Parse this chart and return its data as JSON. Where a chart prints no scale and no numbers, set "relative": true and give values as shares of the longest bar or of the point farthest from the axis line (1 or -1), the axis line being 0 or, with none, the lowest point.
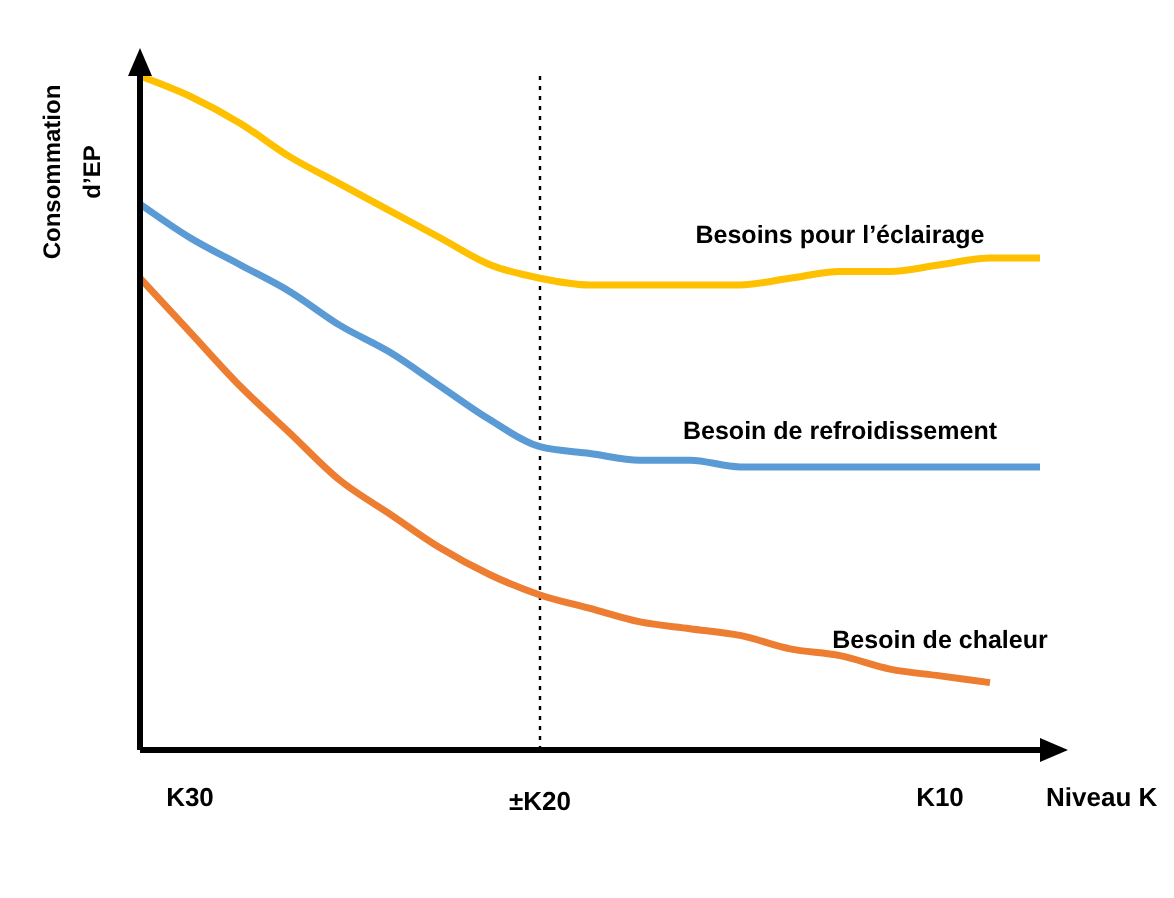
{
  "chart_data": {
    "type": "line",
    "relative": true,
    "ylabel": "Consommation d’EP",
    "xlabel": "Niveau K",
    "marker": "none",
    "line_style": "solid",
    "grid": false,
    "categories": [
      null,
      "K30",
      null,
      null,
      null,
      null,
      null,
      null,
      "±K20",
      null,
      null,
      null,
      null,
      null,
      null,
      null,
      "K10",
      null,
      null
    ],
    "series": [
      {
        "name": "Besoins pour l’éclairage",
        "color": "#ffc000",
        "values": [
          1,
          0.97,
          0.93,
          0.88,
          0.84,
          0.8,
          0.76,
          0.72,
          0.7,
          0.69,
          0.69,
          0.69,
          0.69,
          0.7,
          0.71,
          0.71,
          0.72,
          0.73,
          0.73
        ]
      },
      {
        "name": "Besoin de refroidissement",
        "color": "#5b9bd5",
        "values": [
          0.81,
          0.76,
          0.72,
          0.68,
          0.63,
          0.59,
          0.54,
          0.49,
          0.45,
          0.44,
          0.43,
          0.43,
          0.42,
          0.42,
          0.42,
          0.42,
          0.42,
          0.42,
          0.42
        ]
      },
      {
        "name": "Besoin de chaleur",
        "color": "#ed7d31",
        "values": [
          0.7,
          0.62,
          0.54,
          0.47,
          0.4,
          0.35,
          0.3,
          0.26,
          0.23,
          0.21,
          0.19,
          0.18,
          0.17,
          0.15,
          0.14,
          0.12,
          0.11,
          0.1,
          null
        ]
      }
    ],
    "ref_lines": [
      {
        "axis": "x",
        "value": "±K20",
        "line_style": "dotted",
        "color": "#000000"
      }
    ]
  }
}
